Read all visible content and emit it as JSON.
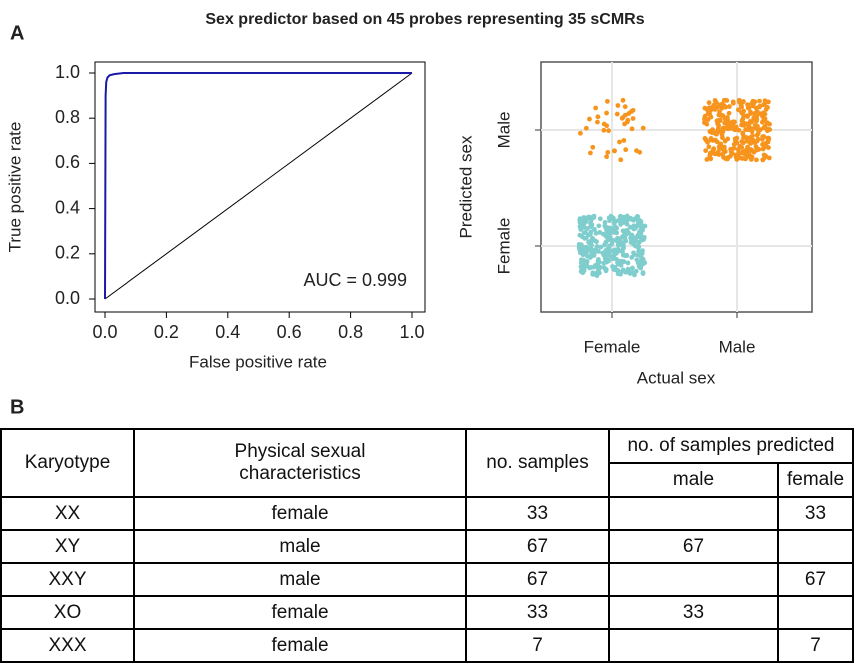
{
  "title": "Sex predictor based on 45 probes representing 35 sCMRs",
  "panels": [
    "A",
    "B"
  ],
  "chart_data": [
    {
      "type": "line",
      "xlabel": "False positive rate",
      "ylabel": "True positive rate",
      "annotation": "AUC = 0.999",
      "x": [
        0,
        0.002,
        0.004,
        0.008,
        0.015,
        0.03,
        0.06,
        1.0
      ],
      "y": [
        0,
        0.9,
        0.96,
        0.98,
        0.99,
        0.995,
        1.0,
        1.0
      ],
      "color": "#1a1aa6",
      "xlim": [
        0,
        1
      ],
      "ylim": [
        0,
        1
      ],
      "xticks": [
        {
          "value": 0,
          "label": "0.0"
        },
        0.2,
        0.4,
        0.6,
        0.8,
        {
          "value": 1,
          "label": "1.0"
        }
      ],
      "yticks": [
        {
          "value": 0,
          "label": "0.0"
        },
        0.2,
        0.4,
        0.6,
        0.8,
        {
          "value": 1,
          "label": "1.0"
        }
      ]
    },
    {
      "type": "jitter",
      "xlabel": "Actual sex",
      "ylabel": "Predicted sex",
      "categories": [
        "Female",
        "Male"
      ],
      "groups": [
        {
          "x": "Female",
          "y": "Male",
          "count": 40,
          "color": "#f7941d"
        },
        {
          "x": "Male",
          "y": "Male",
          "count": 300,
          "color": "#f7941d"
        },
        {
          "x": "Female",
          "y": "Female",
          "count": 350,
          "color": "#7fcdcd"
        }
      ],
      "grid": true
    }
  ],
  "table": {
    "header": [
      "Karyotype",
      "Physical sexual characteristics",
      "no. samples",
      "no. of samples predicted"
    ],
    "subheader": [
      "male",
      "female"
    ],
    "rows": [
      [
        "XX",
        "female",
        33,
        null,
        33
      ],
      [
        "XY",
        "male",
        67,
        67,
        null
      ],
      [
        "XXY",
        "male",
        67,
        null,
        67
      ],
      [
        "XO",
        "female",
        33,
        33,
        null
      ],
      [
        "XXX",
        "female",
        7,
        null,
        7
      ]
    ]
  }
}
